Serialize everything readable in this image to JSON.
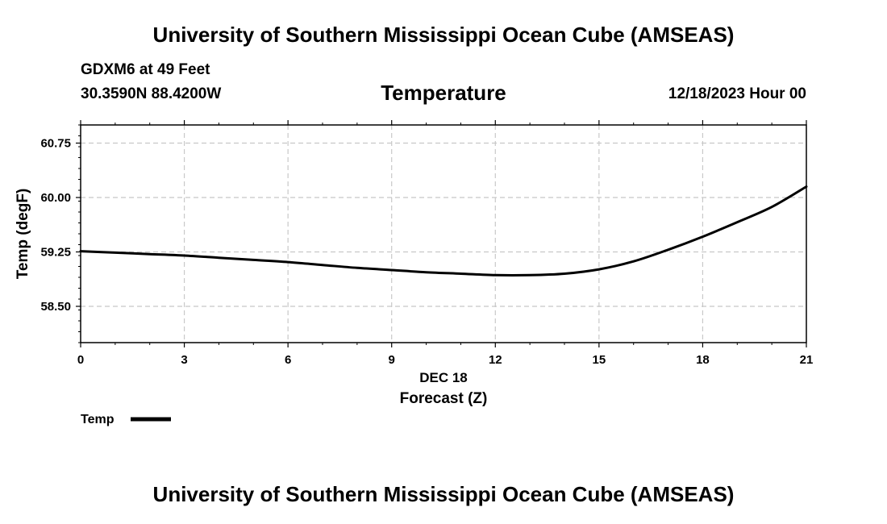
{
  "header": {
    "title": "University of Southern Mississippi Ocean Cube (AMSEAS)",
    "station": "GDXM6 at 49 Feet",
    "coords": "30.3590N  88.4200W",
    "chart_title": "Temperature",
    "date": "12/18/2023 Hour 00"
  },
  "footer": {
    "title": "University of Southern Mississippi Ocean Cube (AMSEAS)"
  },
  "chart_data": {
    "type": "line",
    "title": "Temperature",
    "xlabel": "Forecast (Z)",
    "xsublabel": "DEC 18",
    "ylabel": "Temp (degF)",
    "xlim": [
      0,
      21
    ],
    "ylim": [
      58.0,
      61.0
    ],
    "xticks": [
      0,
      3,
      6,
      9,
      12,
      15,
      18,
      21
    ],
    "yticks": [
      58.5,
      59.25,
      60.0,
      60.75
    ],
    "ytick_labels": [
      "58.50",
      "59.25",
      "60.00",
      "60.75"
    ],
    "grid": true,
    "legend": {
      "label": "Temp",
      "placement": "bottom-left"
    },
    "series": [
      {
        "name": "Temp",
        "color": "#000000",
        "x": [
          0,
          1,
          2,
          3,
          4,
          5,
          6,
          7,
          8,
          9,
          10,
          11,
          12,
          13,
          14,
          15,
          16,
          17,
          18,
          19,
          20,
          21
        ],
        "values": [
          59.26,
          59.24,
          59.22,
          59.2,
          59.17,
          59.14,
          59.11,
          59.07,
          59.03,
          59.0,
          58.97,
          58.95,
          58.93,
          58.93,
          58.95,
          59.01,
          59.12,
          59.28,
          59.46,
          59.66,
          59.87,
          60.15
        ]
      }
    ]
  }
}
